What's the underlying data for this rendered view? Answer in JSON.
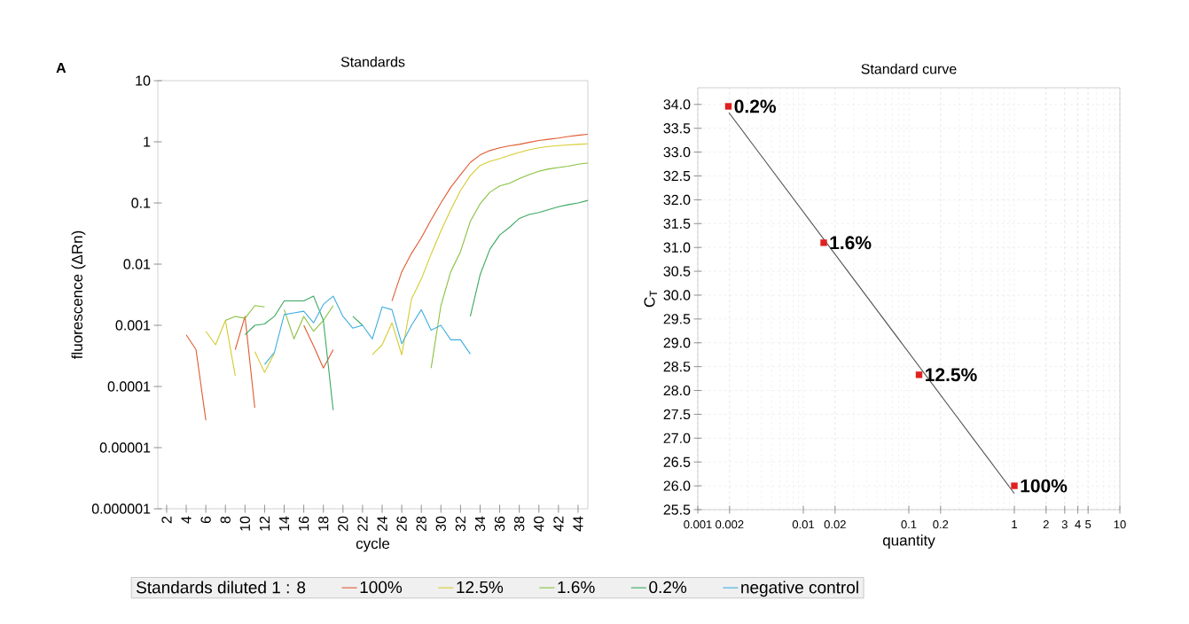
{
  "chart_data": [
    {
      "type": "line",
      "title": "Standards",
      "xlabel": "cycle",
      "ylabel": "fluorescence (ΔRn)",
      "annotations": [
        "A"
      ],
      "legend_title": "Standards diluted 1 : 8",
      "x": [
        4,
        5,
        6,
        7,
        8,
        9,
        10,
        11,
        12,
        13,
        14,
        15,
        16,
        17,
        18,
        19,
        20,
        21,
        22,
        23,
        24,
        25,
        26,
        27,
        28,
        29,
        30,
        31,
        32,
        33,
        34,
        35,
        36,
        37,
        38,
        39,
        40,
        41,
        42,
        43,
        44,
        45
      ],
      "series": [
        {
          "name": "100%",
          "color": "#e05a30",
          "values": [
            0.0007,
            0.0004,
            2.8e-05,
            null,
            null,
            0.0004,
            0.0014,
            4.5e-05,
            null,
            null,
            null,
            null,
            0.001,
            0.00046,
            0.0002,
            0.0004,
            null,
            null,
            null,
            null,
            null,
            0.0025,
            0.0075,
            0.015,
            0.027,
            0.053,
            0.1,
            0.18,
            0.29,
            0.46,
            0.61,
            0.72,
            0.8,
            0.86,
            0.91,
            0.98,
            1.05,
            1.1,
            1.15,
            1.22,
            1.28,
            1.33
          ]
        },
        {
          "name": "12.5%",
          "color": "#d4cc30",
          "values": [
            null,
            null,
            0.0008,
            0.00048,
            0.0012,
            0.00015,
            null,
            0.00037,
            0.00017,
            0.00035,
            null,
            null,
            null,
            null,
            null,
            null,
            null,
            null,
            null,
            0.00033,
            0.00048,
            0.0011,
            0.00033,
            0.0027,
            0.0057,
            0.0146,
            0.035,
            0.077,
            0.16,
            0.28,
            0.41,
            0.48,
            0.53,
            0.6,
            0.67,
            0.74,
            0.8,
            0.84,
            0.87,
            0.89,
            0.91,
            0.93
          ]
        },
        {
          "name": "1.6%",
          "color": "#88c040",
          "values": [
            null,
            null,
            null,
            null,
            0.0012,
            0.0014,
            0.0013,
            0.0021,
            0.002,
            null,
            0.0018,
            0.0006,
            0.0014,
            0.0008,
            0.0012,
            0.0021,
            null,
            null,
            null,
            null,
            null,
            null,
            null,
            null,
            null,
            0.0002,
            0.0021,
            0.0075,
            0.016,
            0.05,
            0.097,
            0.15,
            0.19,
            0.21,
            0.25,
            0.29,
            0.33,
            0.36,
            0.38,
            0.4,
            0.43,
            0.45
          ]
        },
        {
          "name": "0.2%",
          "color": "#3aa860",
          "values": [
            null,
            null,
            null,
            null,
            null,
            null,
            0.0007,
            0.001,
            0.00105,
            0.0014,
            0.0025,
            0.0025,
            0.0025,
            0.003,
            0.0012,
            4.1e-05,
            null,
            0.0014,
            0.001,
            null,
            null,
            null,
            null,
            null,
            null,
            null,
            null,
            null,
            null,
            0.0014,
            0.0067,
            0.0176,
            0.03,
            0.04,
            0.056,
            0.065,
            0.07,
            0.078,
            0.087,
            0.094,
            0.1,
            0.11
          ]
        },
        {
          "name": "negative control",
          "color": "#40aee0",
          "values": [
            null,
            null,
            null,
            null,
            null,
            null,
            null,
            null,
            0.00023,
            0.00036,
            0.0015,
            0.0016,
            0.0017,
            0.0011,
            0.0022,
            0.003,
            0.0014,
            0.0009,
            0.001,
            0.0006,
            0.002,
            0.0018,
            0.0005,
            0.001,
            0.0018,
            0.00083,
            0.001,
            0.00058,
            0.00058,
            0.00034,
            null,
            null,
            null,
            null,
            null,
            null,
            null,
            null,
            null,
            null,
            null,
            null
          ]
        }
      ],
      "xlim": [
        1.1,
        45
      ],
      "xticks": [
        2,
        4,
        6,
        8,
        10,
        12,
        14,
        16,
        18,
        20,
        22,
        24,
        26,
        28,
        30,
        32,
        34,
        36,
        38,
        40,
        42,
        44
      ],
      "ylim": [
        1e-06,
        10
      ],
      "yticks": [
        10,
        1,
        0.1,
        0.01,
        0.001,
        0.0001,
        {
          "value": 1e-05,
          "label": "0.00001"
        },
        {
          "value": 1e-06,
          "label": "0.000001"
        }
      ],
      "log": "y",
      "legend": "bottom"
    },
    {
      "type": "scatter",
      "title": "Standard curve",
      "xlabel": "quantity",
      "ylabel": "C$_{T}$",
      "series": [
        {
          "type": "scatter",
          "color": "#e02020",
          "marker": "square",
          "x": [
            0.00195,
            0.0156,
            0.125,
            1
          ],
          "values": [
            33.96,
            31.1,
            28.33,
            26.0
          ]
        },
        {
          "type": "line",
          "color": "#505050",
          "x": [
            0.00197,
            1
          ],
          "values": [
            33.83,
            25.84
          ]
        }
      ],
      "annotations": [
        {
          "text": "0.2%",
          "x": 0.00195,
          "y": 33.96
        },
        {
          "text": "1.6%",
          "x": 0.0156,
          "y": 31.1
        },
        {
          "text": "12.5%",
          "x": 0.125,
          "y": 28.33
        },
        {
          "text": "100%",
          "x": 1,
          "y": 26.0
        }
      ],
      "xlim": [
        0.001,
        10
      ],
      "xticks": [
        0.001,
        0.002,
        0.01,
        0.02,
        0.1,
        0.2,
        1,
        2,
        3,
        4,
        5,
        10
      ],
      "ylim": [
        25.5,
        34.35
      ],
      "yticks": [
        {
          "value": 34,
          "label": "34.0"
        },
        33.5,
        {
          "value": 33,
          "label": "33.0"
        },
        32.5,
        {
          "value": 32,
          "label": "32.0"
        },
        31.5,
        {
          "value": 31,
          "label": "31.0"
        },
        30.5,
        {
          "value": 30,
          "label": "30.0"
        },
        29.5,
        {
          "value": 29,
          "label": "29.0"
        },
        28.5,
        {
          "value": 28,
          "label": "28.0"
        },
        27.5,
        {
          "value": 27,
          "label": "27.0"
        },
        26.5,
        {
          "value": 26,
          "label": "26.0"
        },
        25.5
      ],
      "log": "x",
      "grid": true
    }
  ]
}
